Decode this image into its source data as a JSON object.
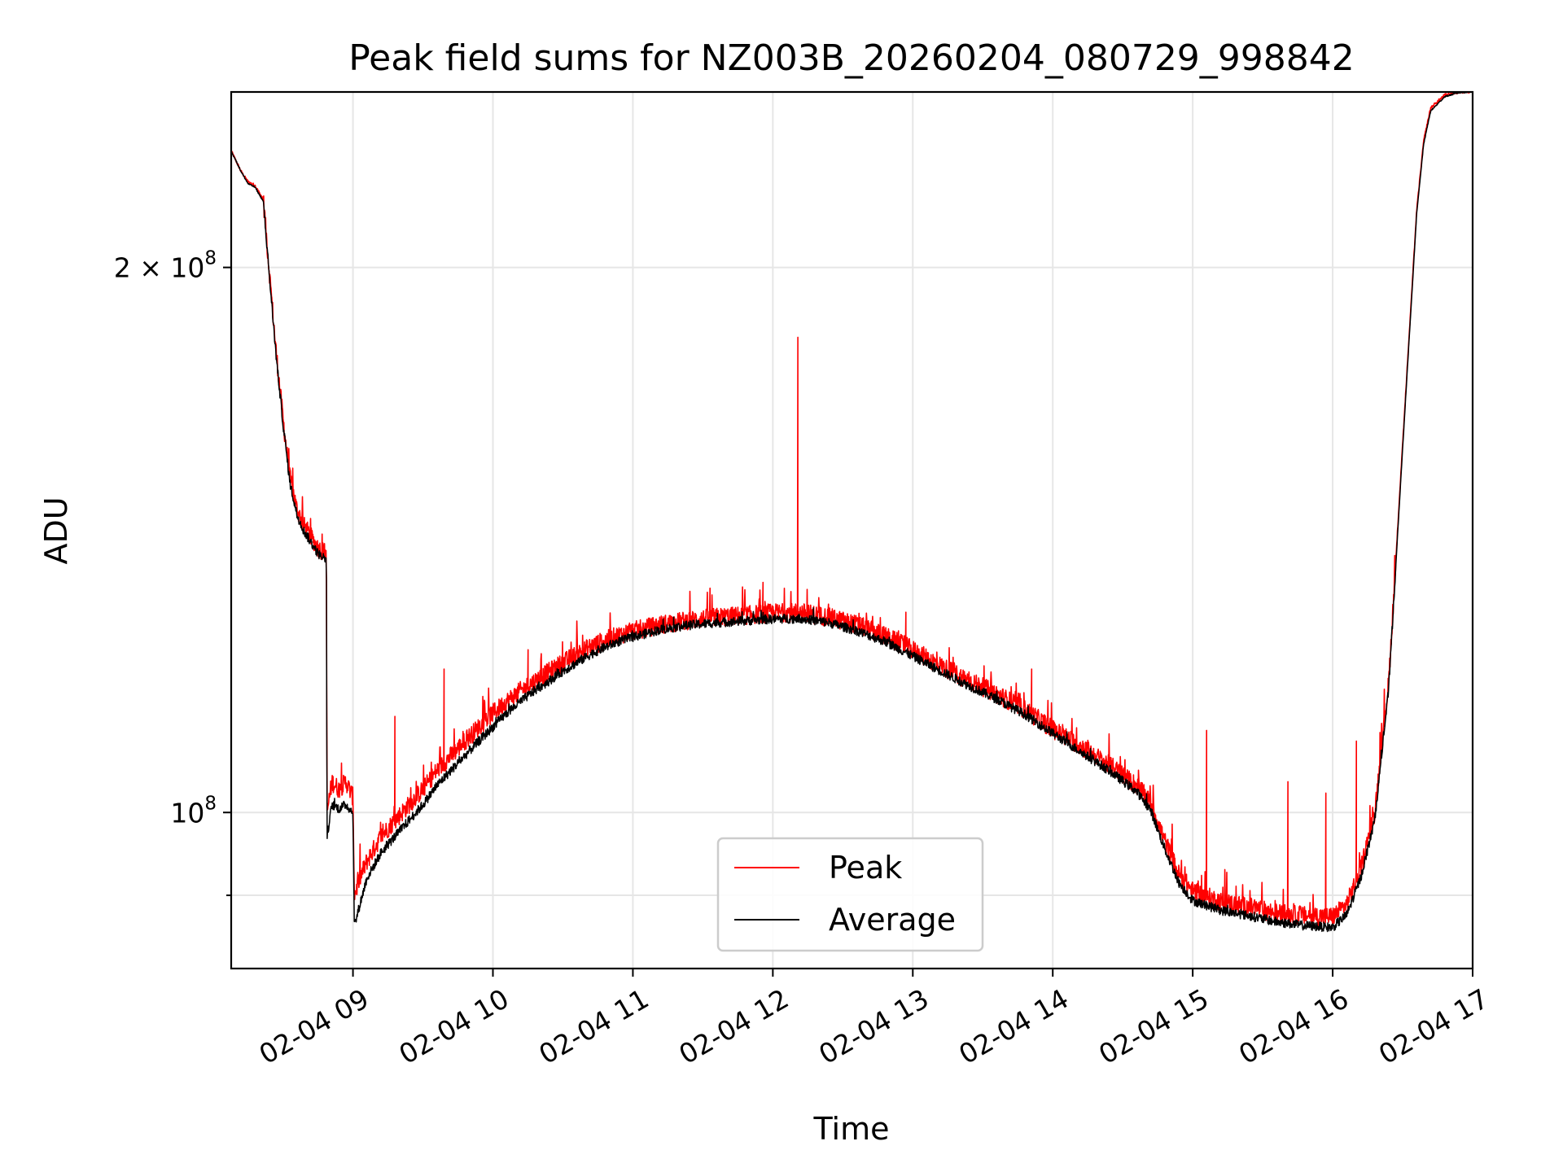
{
  "chart_data": {
    "type": "line",
    "title": "Peak field sums for NZ003B_20260204_080729_998842",
    "xlabel": "Time",
    "ylabel": "ADU",
    "yscale": "log",
    "x_unit": "hours since 02-04 00:00",
    "xlim": [
      8.13,
      17.0
    ],
    "ylim": [
      82000000,
      250000000
    ],
    "x_ticks": [
      {
        "value": 9,
        "label": "02-04 09"
      },
      {
        "value": 10,
        "label": "02-04 10"
      },
      {
        "value": 11,
        "label": "02-04 11"
      },
      {
        "value": 12,
        "label": "02-04 12"
      },
      {
        "value": 13,
        "label": "02-04 13"
      },
      {
        "value": 14,
        "label": "02-04 14"
      },
      {
        "value": 15,
        "label": "02-04 15"
      },
      {
        "value": 16,
        "label": "02-04 16"
      },
      {
        "value": 17,
        "label": "02-04 17"
      }
    ],
    "y_major_ticks": [
      {
        "value": 100000000,
        "base": "10",
        "exp": "8",
        "coef": ""
      },
      {
        "value": 200000000,
        "base": "10",
        "exp": "8",
        "coef": "2 × "
      }
    ],
    "y_minor_ticks": [
      90000000
    ],
    "grid": true,
    "legend_position": "lower-center",
    "series": [
      {
        "name": "Peak",
        "color": "#ff0000",
        "points": [
          [
            8.13,
            232000000
          ],
          [
            8.2,
            226000000
          ],
          [
            8.25,
            223000000
          ],
          [
            8.3,
            222000000
          ],
          [
            8.36,
            218000000
          ],
          [
            8.4,
            200000000
          ],
          [
            8.45,
            180000000
          ],
          [
            8.5,
            165000000
          ],
          [
            8.55,
            153000000
          ],
          [
            8.6,
            147000000
          ],
          [
            8.65,
            144000000
          ],
          [
            8.7,
            142000000
          ],
          [
            8.75,
            140000000
          ],
          [
            8.81,
            139000000
          ],
          [
            8.815,
            100000000
          ],
          [
            8.85,
            104000000
          ],
          [
            8.9,
            103000000
          ],
          [
            8.95,
            104000000
          ],
          [
            9.0,
            102000000
          ],
          [
            9.01,
            90000000
          ],
          [
            9.05,
            92000000
          ],
          [
            9.1,
            94000000
          ],
          [
            9.2,
            97000000
          ],
          [
            9.3,
            99000000
          ],
          [
            9.4,
            101000000
          ],
          [
            9.5,
            103000000
          ],
          [
            9.6,
            105500000
          ],
          [
            9.7,
            107500000
          ],
          [
            9.8,
            109500000
          ],
          [
            9.9,
            111500000
          ],
          [
            10.0,
            113500000
          ],
          [
            10.1,
            115200000
          ],
          [
            10.2,
            116800000
          ],
          [
            10.3,
            118200000
          ],
          [
            10.4,
            119600000
          ],
          [
            10.5,
            121000000
          ],
          [
            10.6,
            122300000
          ],
          [
            10.7,
            123500000
          ],
          [
            10.8,
            124500000
          ],
          [
            10.9,
            125300000
          ],
          [
            11.0,
            126000000
          ],
          [
            11.2,
            127000000
          ],
          [
            11.4,
            127700000
          ],
          [
            11.6,
            128200000
          ],
          [
            11.8,
            128500000
          ],
          [
            12.0,
            128900000
          ],
          [
            12.2,
            129000000
          ],
          [
            12.4,
            128200000
          ],
          [
            12.6,
            127000000
          ],
          [
            12.8,
            125200000
          ],
          [
            13.0,
            123000000
          ],
          [
            13.2,
            120500000
          ],
          [
            13.4,
            118300000
          ],
          [
            13.6,
            116300000
          ],
          [
            13.8,
            114000000
          ],
          [
            14.0,
            111200000
          ],
          [
            14.2,
            108800000
          ],
          [
            14.4,
            106300000
          ],
          [
            14.6,
            103500000
          ],
          [
            14.7,
            101200000
          ],
          [
            14.8,
            96500000
          ],
          [
            14.9,
            92500000
          ],
          [
            15.0,
            90500000
          ],
          [
            15.2,
            89300000
          ],
          [
            15.4,
            88700000
          ],
          [
            15.6,
            88000000
          ],
          [
            15.8,
            87700000
          ],
          [
            16.0,
            87600000
          ],
          [
            16.1,
            89000000
          ],
          [
            16.2,
            93000000
          ],
          [
            16.3,
            100000000
          ],
          [
            16.4,
            118000000
          ],
          [
            16.5,
            160000000
          ],
          [
            16.6,
            215000000
          ],
          [
            16.65,
            235000000
          ],
          [
            16.7,
            245000000
          ],
          [
            16.8,
            249000000
          ],
          [
            16.9,
            250000000
          ],
          [
            16.98,
            250000000
          ]
        ],
        "spikes": [
          [
            9.3,
            113000000
          ],
          [
            9.65,
            120000000
          ],
          [
            10.25,
            123000000
          ],
          [
            11.55,
            133000000
          ],
          [
            11.93,
            134000000
          ],
          [
            12.18,
            183000000
          ],
          [
            12.95,
            129000000
          ],
          [
            13.85,
            120000000
          ],
          [
            15.1,
            111000000
          ],
          [
            15.68,
            104000000
          ],
          [
            15.95,
            102500000
          ],
          [
            16.17,
            109500000
          ],
          [
            16.35,
            112000000
          ]
        ]
      },
      {
        "name": "Average",
        "color": "#000000",
        "points": [
          [
            8.13,
            232000000
          ],
          [
            8.2,
            226000000
          ],
          [
            8.25,
            222500000
          ],
          [
            8.3,
            221500000
          ],
          [
            8.36,
            217500000
          ],
          [
            8.4,
            199000000
          ],
          [
            8.45,
            179000000
          ],
          [
            8.5,
            164000000
          ],
          [
            8.55,
            152000000
          ],
          [
            8.6,
            146000000
          ],
          [
            8.65,
            143000000
          ],
          [
            8.7,
            141000000
          ],
          [
            8.75,
            139000000
          ],
          [
            8.81,
            138000000
          ],
          [
            8.815,
            97000000
          ],
          [
            8.85,
            101000000
          ],
          [
            8.9,
            100500000
          ],
          [
            8.95,
            101000000
          ],
          [
            9.0,
            100000000
          ],
          [
            9.01,
            86500000
          ],
          [
            9.05,
            89000000
          ],
          [
            9.1,
            92000000
          ],
          [
            9.2,
            95000000
          ],
          [
            9.3,
            97000000
          ],
          [
            9.4,
            99000000
          ],
          [
            9.5,
            101000000
          ],
          [
            9.6,
            103500000
          ],
          [
            9.7,
            105500000
          ],
          [
            9.8,
            107500000
          ],
          [
            9.9,
            109500000
          ],
          [
            10.0,
            111500000
          ],
          [
            10.1,
            113500000
          ],
          [
            10.2,
            115200000
          ],
          [
            10.3,
            116800000
          ],
          [
            10.4,
            118200000
          ],
          [
            10.5,
            119700000
          ],
          [
            10.6,
            121000000
          ],
          [
            10.7,
            122300000
          ],
          [
            10.8,
            123400000
          ],
          [
            10.9,
            124300000
          ],
          [
            11.0,
            125000000
          ],
          [
            11.2,
            126200000
          ],
          [
            11.4,
            126900000
          ],
          [
            11.6,
            127300000
          ],
          [
            11.8,
            127600000
          ],
          [
            12.0,
            127900000
          ],
          [
            12.2,
            128000000
          ],
          [
            12.4,
            127300000
          ],
          [
            12.6,
            126000000
          ],
          [
            12.8,
            124300000
          ],
          [
            13.0,
            122000000
          ],
          [
            13.2,
            119700000
          ],
          [
            13.4,
            117500000
          ],
          [
            13.6,
            115500000
          ],
          [
            13.8,
            113300000
          ],
          [
            14.0,
            110600000
          ],
          [
            14.2,
            108000000
          ],
          [
            14.4,
            105500000
          ],
          [
            14.6,
            102700000
          ],
          [
            14.7,
            100300000
          ],
          [
            14.8,
            95500000
          ],
          [
            14.9,
            91500000
          ],
          [
            15.0,
            89400000
          ],
          [
            15.2,
            88300000
          ],
          [
            15.4,
            87700000
          ],
          [
            15.6,
            87000000
          ],
          [
            15.8,
            86600000
          ],
          [
            16.0,
            86400000
          ],
          [
            16.1,
            87800000
          ],
          [
            16.2,
            92000000
          ],
          [
            16.3,
            99000000
          ],
          [
            16.4,
            117000000
          ],
          [
            16.5,
            159000000
          ],
          [
            16.6,
            214000000
          ],
          [
            16.65,
            234000000
          ],
          [
            16.7,
            244000000
          ],
          [
            16.8,
            248500000
          ],
          [
            16.9,
            249800000
          ],
          [
            16.98,
            250000000
          ]
        ]
      }
    ]
  }
}
